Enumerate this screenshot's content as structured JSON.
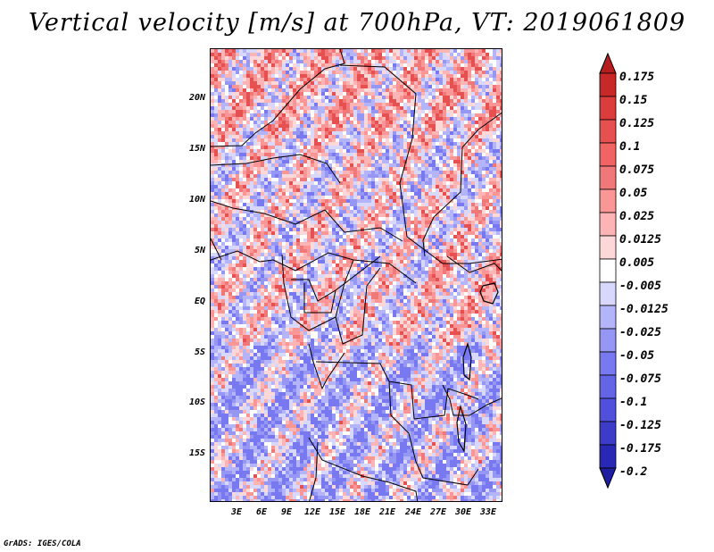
{
  "title": "Vertical velocity [m/s] at 700hPa, VT: 2019061809",
  "credit": "GrADS: IGES/COLA",
  "map": {
    "variable": "Vertical velocity",
    "units": "m/s",
    "level": "700hPa",
    "valid_time": "2019061809",
    "lat_ticks": [
      "20N",
      "15N",
      "10N",
      "5N",
      "EQ",
      "5S",
      "10S",
      "15S"
    ],
    "lon_ticks": [
      "3E",
      "6E",
      "9E",
      "12E",
      "15E",
      "18E",
      "21E",
      "24E",
      "27E",
      "30E",
      "33E"
    ]
  },
  "colorbar": {
    "levels": [
      "0.175",
      "0.15",
      "0.125",
      "0.1",
      "0.075",
      "0.05",
      "0.025",
      "0.0125",
      "0.005",
      "-0.005",
      "-0.0125",
      "-0.025",
      "-0.05",
      "-0.075",
      "-0.1",
      "-0.125",
      "-0.175",
      "-0.2"
    ],
    "colors": [
      "#b41e1e",
      "#c82828",
      "#dc3c3c",
      "#e65050",
      "#f06464",
      "#f07878",
      "#fa9696",
      "#fcb4b4",
      "#fcd8d8",
      "#ffffff",
      "#d8d8fc",
      "#b4b4fa",
      "#9696f5",
      "#7878f0",
      "#6464e6",
      "#5050dc",
      "#3c3cc8",
      "#2828b4",
      "#1e1ea0"
    ]
  }
}
